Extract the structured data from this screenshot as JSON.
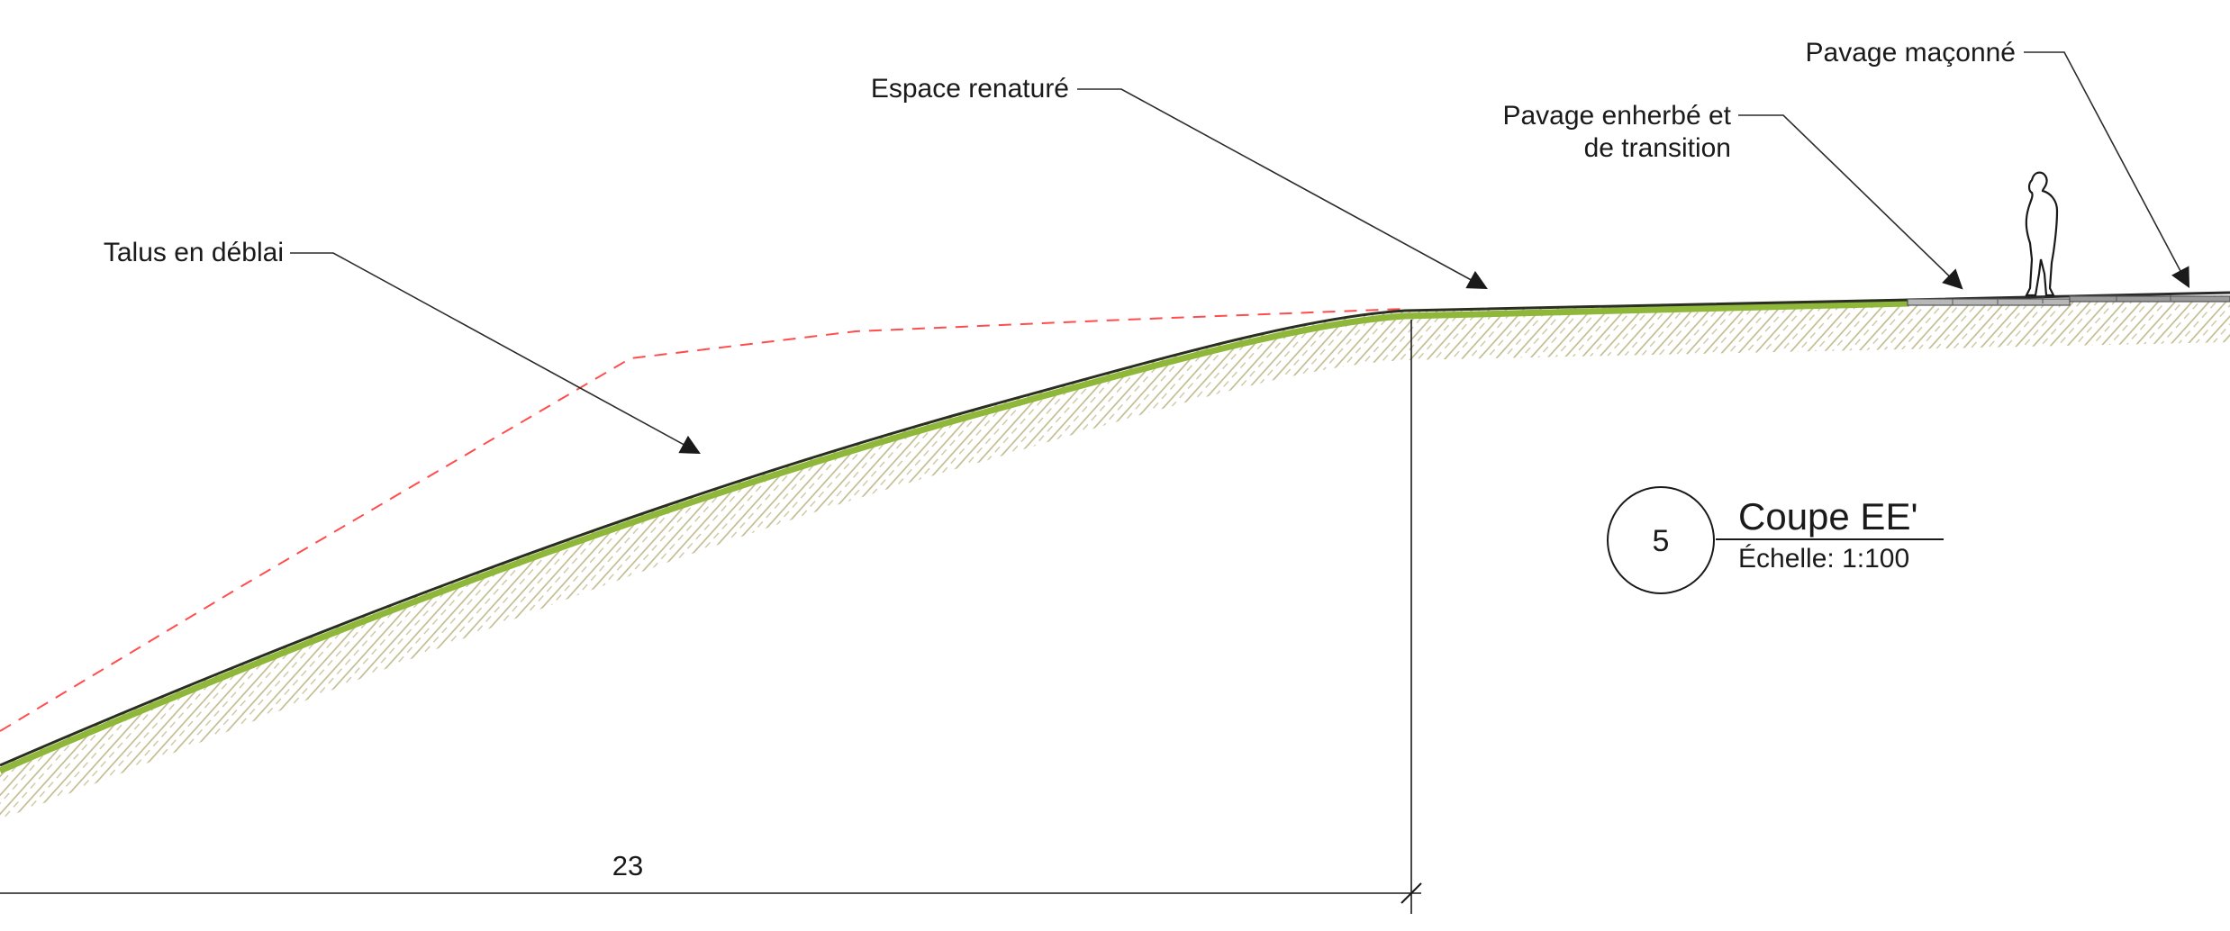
{
  "labels": {
    "talus": "Talus en déblai",
    "espace": "Espace renaturé",
    "pavage_enherbe_l1": "Pavage enherbé et",
    "pavage_enherbe_l2": "de transition",
    "pavage_maconne": "Pavage maçonné"
  },
  "dimension": {
    "value": "23"
  },
  "section": {
    "number": "5",
    "title": "Coupe EE'",
    "scale": "Échelle: 1:100"
  },
  "colors": {
    "terrain_line": "#2a2f22",
    "grass": "#8fb83a",
    "hatch": "#bfb98a",
    "existing_profile": "#ff4d4d",
    "paving": "#9a9a9a",
    "ink": "#1a1a1a"
  },
  "icons": {
    "person": "person-silhouette-icon"
  }
}
